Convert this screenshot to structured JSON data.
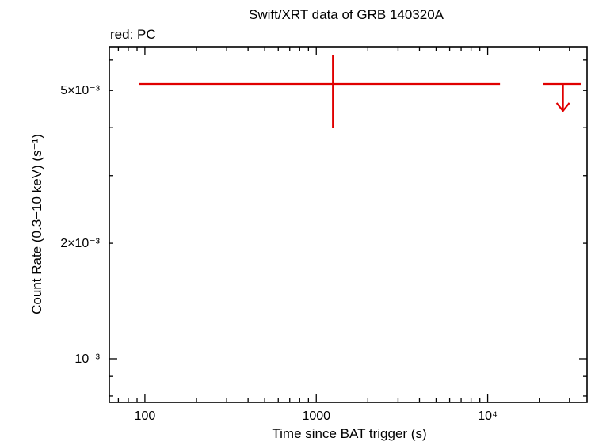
{
  "chart_data": {
    "type": "scatter",
    "title": "Swift/XRT data of GRB 140320A",
    "subtitle": "red: PC",
    "xlabel": "Time since BAT trigger (s)",
    "ylabel": "Count Rate (0.3−10 keV) (s⁻¹)",
    "x_scale": "log",
    "y_scale": "log",
    "xlim": [
      62,
      38000
    ],
    "ylim": [
      0.00077,
      0.0065
    ],
    "x_tick_labels": [
      {
        "value": 100,
        "label": "100"
      },
      {
        "value": 1000,
        "label": "1000"
      },
      {
        "value": 10000,
        "label": "10⁴"
      }
    ],
    "y_tick_labels": [
      {
        "value": 0.005,
        "label": "5×10⁻³"
      },
      {
        "value": 0.002,
        "label": "2×10⁻³"
      },
      {
        "value": 0.001,
        "label": "10⁻³"
      }
    ],
    "grid": false,
    "series": [
      {
        "color": "#e00000",
        "points": [
          {
            "x": 1250,
            "x_low": 92,
            "x_high": 11800,
            "y": 0.0052,
            "y_low": 0.004,
            "y_high": 0.0062
          }
        ],
        "upper_limits": [
          {
            "x": 27500,
            "x_low": 21000,
            "x_high": 35000,
            "y": 0.0052
          }
        ]
      }
    ]
  }
}
